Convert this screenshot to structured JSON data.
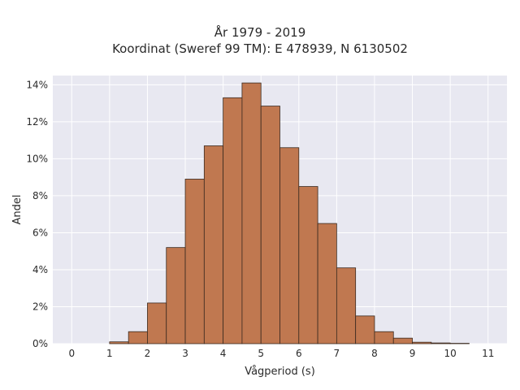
{
  "chart_data": {
    "type": "bar",
    "title_line1": "År 1979 - 2019",
    "title_line2": "Koordinat (Sweref 99 TM): E 478939, N 6130502",
    "xlabel": "Vågperiod (s)",
    "ylabel": "Andel",
    "xlim": [
      -0.5,
      11.5
    ],
    "ylim": [
      0,
      14.5
    ],
    "bin_width": 0.5,
    "x_ticks": [
      0,
      1,
      2,
      3,
      4,
      5,
      6,
      7,
      8,
      9,
      10,
      11
    ],
    "x_tick_labels": [
      "0",
      "1",
      "2",
      "3",
      "4",
      "5",
      "6",
      "7",
      "8",
      "9",
      "10",
      "11"
    ],
    "y_ticks": [
      0,
      2,
      4,
      6,
      8,
      10,
      12,
      14
    ],
    "y_tick_labels": [
      "0%",
      "2%",
      "4%",
      "6%",
      "8%",
      "10%",
      "12%",
      "14%"
    ],
    "bins_start": [
      1.0,
      1.5,
      2.0,
      2.5,
      3.0,
      3.5,
      4.0,
      4.5,
      5.0,
      5.5,
      6.0,
      6.5,
      7.0,
      7.5,
      8.0,
      8.5,
      9.0,
      9.5,
      10.0
    ],
    "values": [
      0.1,
      0.65,
      2.2,
      5.2,
      8.9,
      10.7,
      13.3,
      14.1,
      12.85,
      10.6,
      8.5,
      6.5,
      4.1,
      1.5,
      0.65,
      0.3,
      0.08,
      0.04,
      0.02
    ],
    "grid": true,
    "colors": {
      "bar_fill": "#c07850",
      "bar_edge": "#3a2a20",
      "plot_bg": "#e8e8f1",
      "grid": "#ffffff"
    }
  }
}
